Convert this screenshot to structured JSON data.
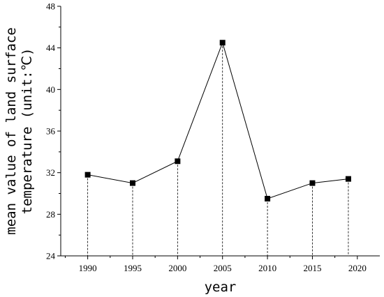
{
  "chart_data": {
    "type": "line",
    "x": [
      1990,
      1995,
      2000,
      2005,
      2010,
      2015,
      2019
    ],
    "series": [
      {
        "values": [
          31.8,
          31.0,
          33.1,
          44.5,
          29.5,
          31.0,
          31.4
        ]
      }
    ],
    "xlabel": "year",
    "ylabel_lines": [
      "mean value of land surface",
      "temperature (unit:℃)"
    ],
    "xlim": [
      1987,
      2022.5
    ],
    "ylim": [
      24,
      48
    ],
    "xticks": [
      1990,
      1995,
      2000,
      2005,
      2010,
      2015,
      2020
    ],
    "xtick_labels": [
      "1990",
      "1995",
      "2000",
      "2005",
      "2010",
      "2015",
      "2020"
    ],
    "yticks": [
      24,
      28,
      32,
      36,
      40,
      44,
      48
    ],
    "ytick_labels": [
      "24",
      "28",
      "32",
      "36",
      "40",
      "44",
      "48"
    ],
    "grid": false,
    "marker": "square",
    "drop_lines": true,
    "color": "#000000"
  }
}
